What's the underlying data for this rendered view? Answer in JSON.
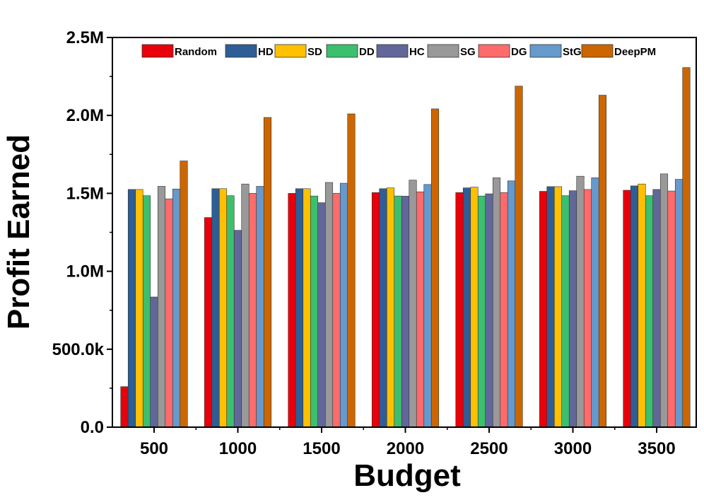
{
  "chart_data": {
    "type": "bar",
    "xlabel": "Budget",
    "ylabel": "Profit Earned",
    "ylim": [
      0,
      2500000
    ],
    "yticks": [
      {
        "value": 0,
        "label": "0.0"
      },
      {
        "value": 500000,
        "label": "500.0k"
      },
      {
        "value": 1000000,
        "label": "1.0M"
      },
      {
        "value": 1500000,
        "label": "1.5M"
      },
      {
        "value": 2000000,
        "label": "2.0M"
      },
      {
        "value": 2500000,
        "label": "2.5M"
      }
    ],
    "categories": [
      "500",
      "1000",
      "1500",
      "2000",
      "2500",
      "3000",
      "3500"
    ],
    "legend_position": "top",
    "grid": false,
    "series": [
      {
        "name": "Random",
        "color": "#E8000B",
        "values": [
          260000,
          1345000,
          1500000,
          1505000,
          1505000,
          1513000,
          1520000
        ]
      },
      {
        "name": "HD",
        "color": "#2F5E96",
        "values": [
          1525000,
          1530000,
          1530000,
          1530000,
          1535000,
          1543000,
          1548000
        ]
      },
      {
        "name": "SD",
        "color": "#FFC000",
        "values": [
          1525000,
          1530000,
          1530000,
          1535000,
          1540000,
          1543000,
          1560000
        ]
      },
      {
        "name": "DD",
        "color": "#3CBF6E",
        "values": [
          1485000,
          1485000,
          1483000,
          1483000,
          1483000,
          1485000,
          1485000
        ]
      },
      {
        "name": "HC",
        "color": "#62679A",
        "values": [
          835000,
          1263000,
          1440000,
          1482000,
          1497000,
          1517000,
          1525000
        ]
      },
      {
        "name": "SG",
        "color": "#999999",
        "values": [
          1545000,
          1560000,
          1570000,
          1585000,
          1600000,
          1610000,
          1625000
        ]
      },
      {
        "name": "DG",
        "color": "#FF6B6B",
        "values": [
          1465000,
          1500000,
          1500000,
          1510000,
          1505000,
          1525000,
          1515000
        ]
      },
      {
        "name": "StG",
        "color": "#6699CC",
        "values": [
          1528000,
          1545000,
          1565000,
          1557000,
          1580000,
          1600000,
          1590000
        ]
      },
      {
        "name": "DeepPM",
        "color": "#CC6600",
        "values": [
          1708000,
          1987000,
          2010000,
          2042000,
          2188000,
          2130000,
          2307000
        ]
      }
    ]
  }
}
